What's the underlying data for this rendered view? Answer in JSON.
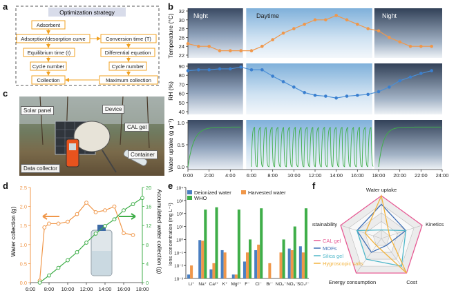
{
  "panels": {
    "a": "a",
    "b": "b",
    "c": "c",
    "d": "d",
    "e": "e",
    "f": "f"
  },
  "strategy": {
    "title": "Optimization strategy",
    "left": [
      "Adsorbent",
      "Adsorption/desorption curve",
      "Equilibrium time (t)",
      "Cycle number",
      "Collection"
    ],
    "right": [
      "Conversion time (T)",
      "Differential equation",
      "Cycle number",
      "Maximum collection"
    ]
  },
  "panel_b": {
    "night_label": "Night",
    "day_label": "Daytime",
    "night2_label": "Night",
    "temp_ylabel": "Temperature (°C)",
    "temp_ticks": [
      "32",
      "30",
      "28",
      "26",
      "24",
      "22"
    ],
    "rh_ylabel": "RH (%)",
    "rh_ticks": [
      "90",
      "80",
      "70",
      "60",
      "50",
      "40"
    ],
    "wu_ylabel": "Water uptake (g g⁻¹)",
    "wu_ticks": [
      "1.0",
      "0.5",
      "0.0"
    ],
    "x_ticks": [
      "0:00",
      "2:00",
      "4:00",
      "6:00",
      "8:00",
      "10:00",
      "12:00",
      "14:00",
      "16:00",
      "18:00",
      "20:00",
      "22:00",
      "24:00"
    ]
  },
  "panel_c": {
    "solar": "Solar panel",
    "device": "Device",
    "cal": "CAL gel",
    "container": "Container",
    "collector": "Data collector"
  },
  "chart_data": [
    {
      "type": "line",
      "id": "temperature",
      "ylabel": "Temperature (°C)",
      "ylim": [
        22,
        32
      ],
      "xlim": [
        0,
        24
      ],
      "x": [
        0,
        1,
        2,
        3,
        4,
        5,
        6,
        7,
        8,
        9,
        10,
        11,
        12,
        13,
        14,
        15,
        16,
        17,
        18,
        19,
        20,
        21,
        22,
        23
      ],
      "values": [
        24.6,
        24.0,
        24.0,
        23.0,
        23.0,
        23.0,
        23.0,
        24.0,
        25.5,
        27.0,
        28.0,
        29.0,
        30.0,
        30.0,
        31.0,
        30.0,
        29.0,
        28.0,
        27.5,
        26.0,
        25.0,
        24.0,
        24.0,
        24.0
      ]
    },
    {
      "type": "line",
      "id": "rh",
      "ylabel": "RH (%)",
      "ylim": [
        40,
        90
      ],
      "xlim": [
        0,
        24
      ],
      "x": [
        0,
        1,
        2,
        3,
        4,
        5,
        6,
        7,
        8,
        9,
        10,
        11,
        12,
        13,
        14,
        15,
        16,
        17,
        18,
        19,
        20,
        21,
        22,
        23
      ],
      "values": [
        85,
        86,
        86,
        87,
        87,
        89,
        86,
        86,
        79,
        73,
        67,
        61,
        58,
        57,
        55,
        57,
        58,
        59,
        62,
        67,
        74,
        78,
        82,
        85
      ]
    },
    {
      "type": "line",
      "id": "water_uptake",
      "ylabel": "Water uptake (g g⁻¹)",
      "ylim": [
        0,
        1.1
      ],
      "xlim": [
        0,
        24
      ]
    },
    {
      "type": "line",
      "id": "collection",
      "xlabel": "",
      "ylabel": "Water collection (g)",
      "y2label": "Accumulated water collection (g)",
      "ylim": [
        0,
        2.5
      ],
      "y2lim": [
        0,
        20
      ],
      "x_ticks": [
        "6:00",
        "8:00",
        "10:00",
        "12:00",
        "14:00",
        "16:00",
        "18:00"
      ],
      "y_ticks": [
        "0.0",
        "0.5",
        "1.0",
        "1.5",
        "2.0",
        "2.5"
      ],
      "y2_ticks": [
        "0",
        "4",
        "8",
        "12",
        "16",
        "20"
      ],
      "series": [
        {
          "x": [
            7,
            7.5,
            8,
            9,
            10,
            11,
            12,
            13,
            14,
            15,
            16,
            17
          ],
          "values": [
            0.05,
            1.45,
            1.55,
            1.55,
            1.6,
            1.8,
            2.1,
            1.85,
            1.9,
            2.0,
            1.3,
            1.25
          ]
        },
        {
          "x": [
            7,
            8,
            9,
            10,
            11,
            12,
            13,
            14,
            15,
            16,
            17,
            18
          ],
          "values": [
            0,
            1.5,
            3.1,
            4.7,
            6.4,
            8.4,
            10.3,
            11.9,
            13.3,
            15.2,
            16.5,
            17.8
          ]
        }
      ]
    },
    {
      "type": "bar",
      "id": "ions",
      "ylabel": "Ions concentration (mg L⁻¹)",
      "log_scale": true,
      "y_ticks": [
        "10⁻³",
        "10⁻²",
        "10⁻¹",
        "10⁰",
        "10¹",
        "10²",
        "10³",
        "10⁴"
      ],
      "categories": [
        "Li⁺",
        "Na⁺",
        "Ca²⁺",
        "K⁺",
        "Mg²⁺",
        "F⁻",
        "Cl⁻",
        "Br⁻",
        "NO₂⁻",
        "NO₃⁻",
        "SO₄²⁻"
      ],
      "series": [
        {
          "name": "Deionized water",
          "color": "#4a7fc1",
          "values": [
            0.002,
            0.9,
            0.005,
            0.15,
            0.002,
            0.02,
            0.15,
            null,
            null,
            0.2,
            0.3
          ]
        },
        {
          "name": "Harvested water",
          "color": "#f0974a",
          "values": [
            0.01,
            0.8,
            0.015,
            0.1,
            0.002,
            0.1,
            0.4,
            0.015,
            0.1,
            0.15,
            0.1
          ]
        },
        {
          "name": "WHO",
          "color": "#3fae49",
          "values": [
            null,
            200,
            300,
            null,
            200,
            1,
            250,
            null,
            1,
            10,
            250
          ]
        }
      ]
    },
    {
      "type": "radar",
      "id": "radar",
      "axes": [
        "Water uptake",
        "Kinetics",
        "Cost",
        "Energy consumption",
        "Sustainability"
      ],
      "series": [
        {
          "name": "CAL gel",
          "color": "#e75a94",
          "values": [
            5,
            5,
            5,
            5,
            5
          ]
        },
        {
          "name": "MOFs",
          "color": "#3f6fb5",
          "values": [
            4,
            3,
            1,
            2,
            3
          ]
        },
        {
          "name": "Silica gel",
          "color": "#4fb7c9",
          "values": [
            1,
            3,
            4,
            3,
            3
          ]
        },
        {
          "name": "Hygroscopic salts",
          "color": "#f2b33d",
          "values": [
            5,
            1,
            5,
            1,
            2
          ]
        }
      ]
    }
  ]
}
